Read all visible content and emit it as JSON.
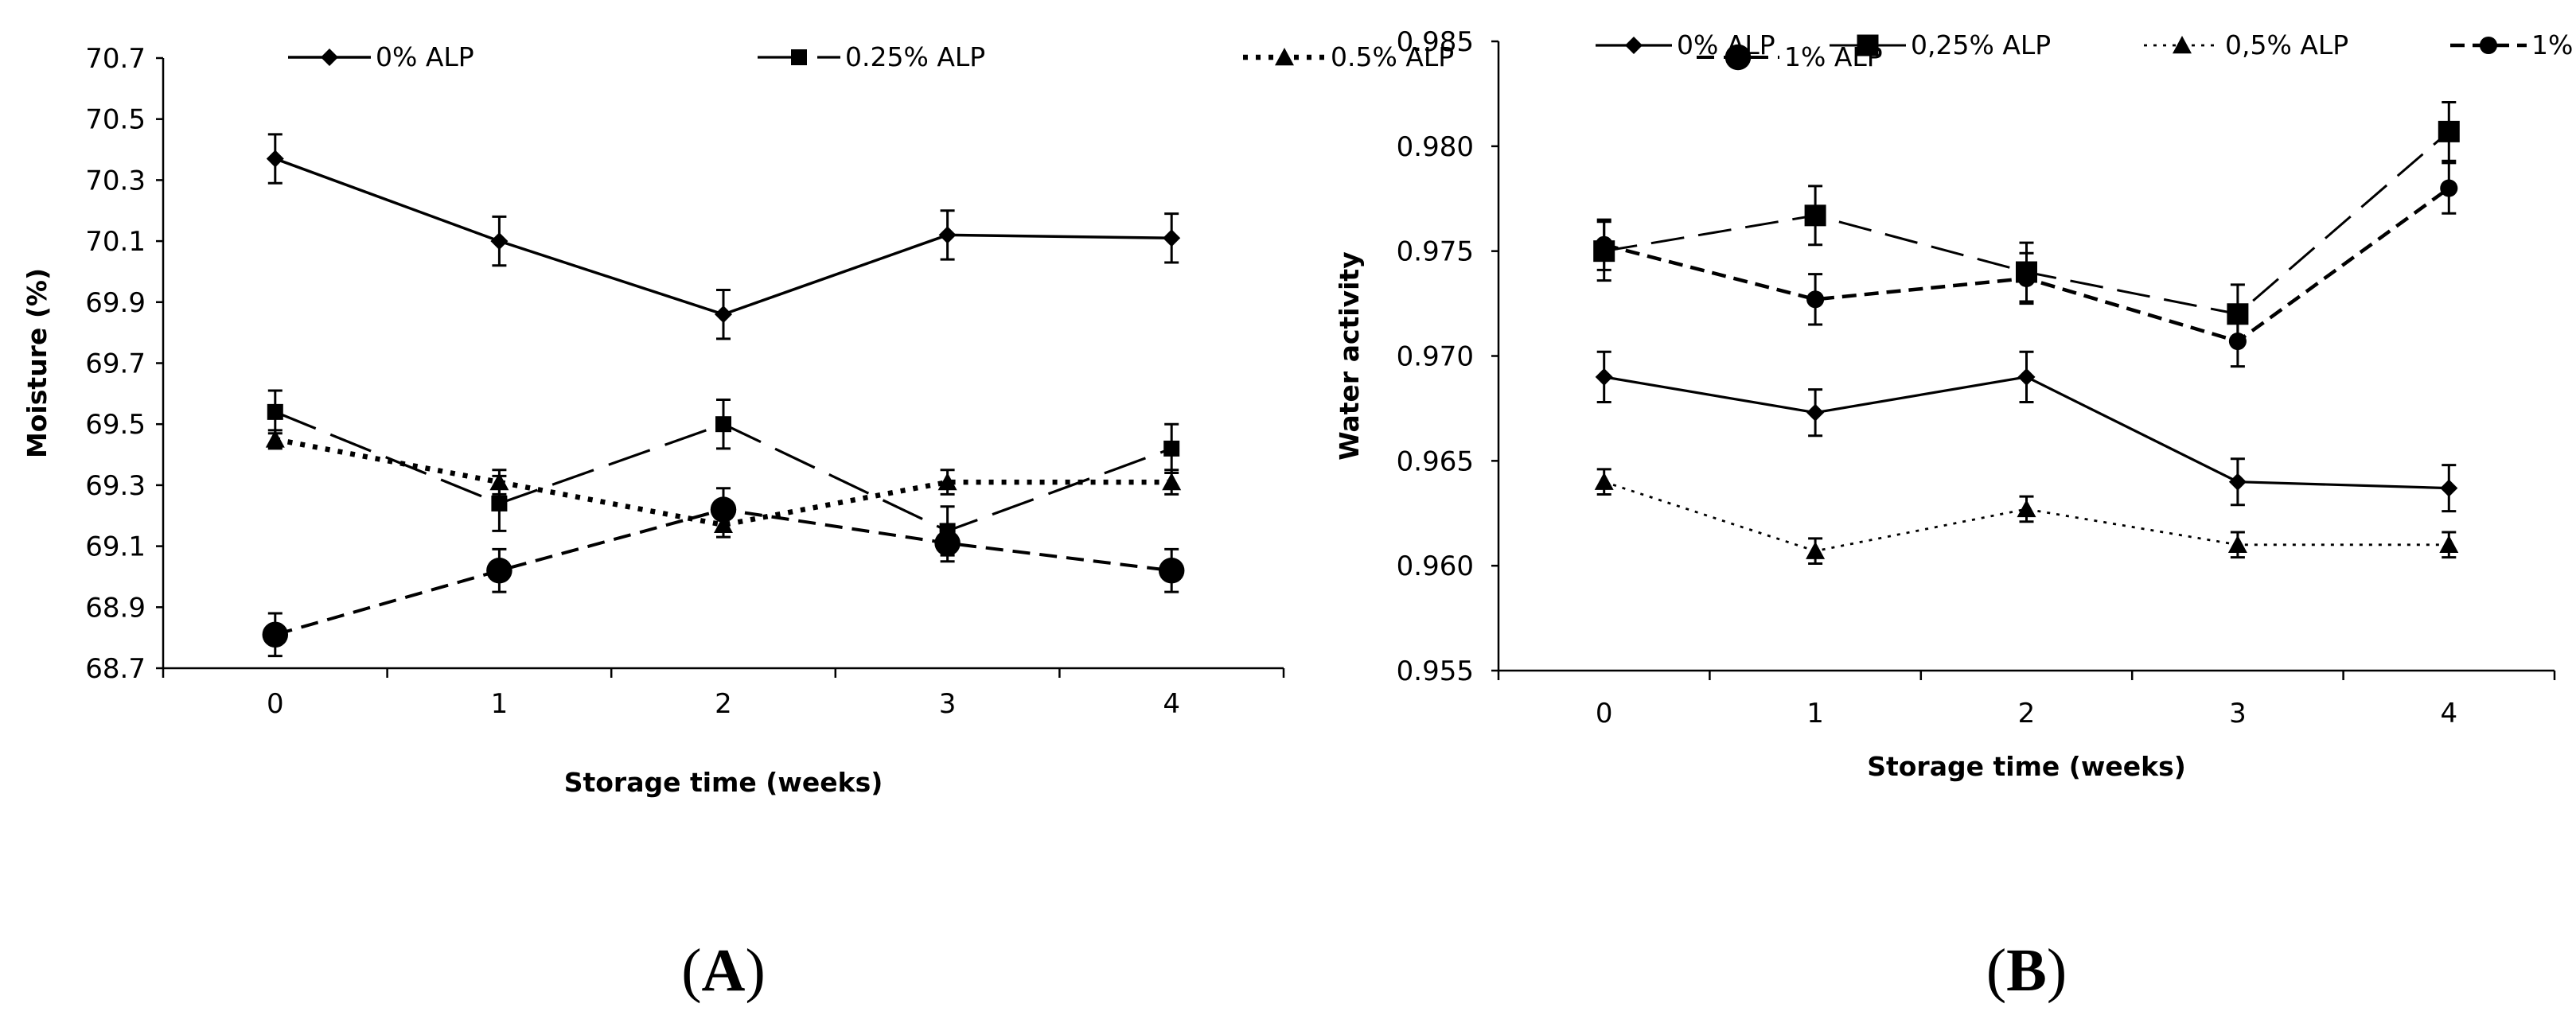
{
  "chart_data": [
    {
      "panel_label": "(A)",
      "panel_label_parts": {
        "open": "(",
        "letter": "A",
        "close": ")"
      },
      "type": "line",
      "title": "",
      "xlabel": "Storage time (weeks)",
      "ylabel": "Moisture (%)",
      "categories": [
        "0",
        "1",
        "2",
        "3",
        "4"
      ],
      "ylim": [
        68.7,
        70.7
      ],
      "yticks": [
        "68.7",
        "68.9",
        "69.1",
        "69.3",
        "69.5",
        "69.7",
        "69.9",
        "70.1",
        "70.3",
        "70.5",
        "70.7"
      ],
      "grid": false,
      "legend_position": "top",
      "series": [
        {
          "name": "0% ALP",
          "values": [
            70.37,
            70.1,
            69.86,
            70.12,
            70.11
          ],
          "errors": [
            0.08,
            0.08,
            0.08,
            0.08,
            0.08
          ],
          "marker": "diamond",
          "dash": "solid"
        },
        {
          "name": "0.25% ALP",
          "values": [
            69.54,
            69.24,
            69.5,
            69.15,
            69.42
          ],
          "errors": [
            0.07,
            0.09,
            0.08,
            0.08,
            0.08
          ],
          "marker": "square",
          "dash": "longdash"
        },
        {
          "name": "0.5% ALP",
          "values": [
            69.45,
            69.31,
            69.17,
            69.31,
            69.31
          ],
          "errors": [
            0.03,
            0.04,
            0.04,
            0.04,
            0.04
          ],
          "marker": "triangle",
          "dash": "dotted"
        },
        {
          "name": "1% ALP",
          "values": [
            68.81,
            69.02,
            69.22,
            69.11,
            69.02
          ],
          "errors": [
            0.07,
            0.07,
            0.07,
            0.06,
            0.07
          ],
          "marker": "circle",
          "dash": "dashed"
        }
      ]
    },
    {
      "panel_label": "(B)",
      "panel_label_parts": {
        "open": "(",
        "letter": "B",
        "close": ")"
      },
      "type": "line",
      "title": "",
      "xlabel": "Storage time (weeks)",
      "ylabel": "Water activity",
      "categories": [
        "0",
        "1",
        "2",
        "3",
        "4"
      ],
      "ylim": [
        0.955,
        0.985
      ],
      "yticks": [
        "0.955",
        "0.960",
        "0.965",
        "0.970",
        "0.975",
        "0.980",
        "0.985"
      ],
      "grid": false,
      "legend_position": "top",
      "series": [
        {
          "name": "0% ALP",
          "values": [
            0.969,
            0.9673,
            0.969,
            0.964,
            0.9637
          ],
          "errors": [
            0.0012,
            0.0011,
            0.0012,
            0.0011,
            0.0011
          ],
          "marker": "diamond",
          "dash": "solid"
        },
        {
          "name": "0,25% ALP",
          "values": [
            0.975,
            0.9767,
            0.974,
            0.972,
            0.9807
          ],
          "errors": [
            0.0014,
            0.0014,
            0.0014,
            0.0014,
            0.0014
          ],
          "marker": "square-large",
          "dash": "longdash"
        },
        {
          "name": "0,5% ALP",
          "values": [
            0.964,
            0.9607,
            0.9627,
            0.961,
            0.961
          ],
          "errors": [
            0.0006,
            0.0006,
            0.0006,
            0.0006,
            0.0006
          ],
          "marker": "triangle",
          "dash": "dotted-thin"
        },
        {
          "name": "1% ALP",
          "values": [
            0.9753,
            0.9727,
            0.9737,
            0.9707,
            0.978
          ],
          "errors": [
            0.0012,
            0.0012,
            0.0012,
            0.0012,
            0.0012
          ],
          "marker": "circle-small",
          "dash": "dashed"
        }
      ]
    }
  ]
}
